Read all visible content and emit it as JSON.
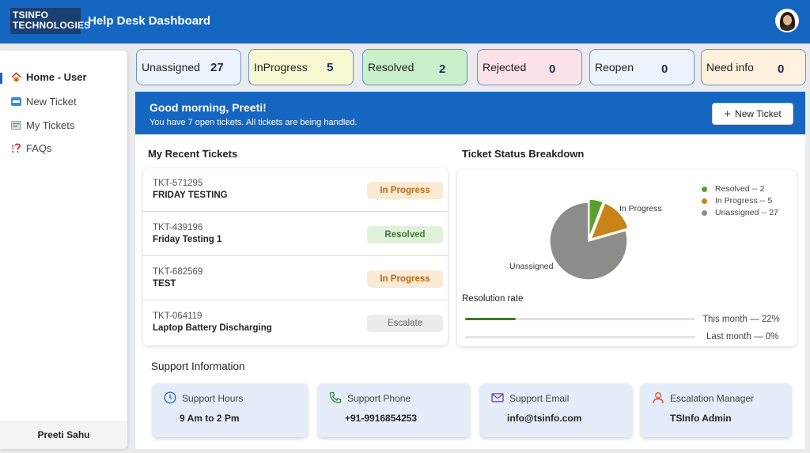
{
  "header": {
    "logo_line1": "TSINFO",
    "logo_line2": "TECHNOLOGIES",
    "title": "Help Desk Dashboard"
  },
  "sidebar": {
    "items": [
      {
        "label": "Home - User",
        "icon": "home-icon"
      },
      {
        "label": "New Ticket",
        "icon": "new-badge-icon"
      },
      {
        "label": "My Tickets",
        "icon": "ticket-icon"
      },
      {
        "label": "FAQs",
        "icon": "question-icon"
      }
    ],
    "user_name": "Preeti Sahu"
  },
  "stats": [
    {
      "label": "Unassigned",
      "value": "27",
      "bg": "#edf3fb"
    },
    {
      "label": "InProgress",
      "value": "5",
      "bg": "#f7f7d2"
    },
    {
      "label": "Resolved",
      "value": "2",
      "bg": "#c9f0c9"
    },
    {
      "label": "Rejected",
      "value": "0",
      "bg": "#fbe3e8"
    },
    {
      "label": "Reopen",
      "value": "0",
      "bg": "#edf3fb"
    },
    {
      "label": "Need info",
      "value": "0",
      "bg": "#fff1dd"
    }
  ],
  "banner": {
    "greeting": "Good morning, Preeti!",
    "subtitle": "You have 7 open tickets. All tickets are being handled.",
    "new_ticket_label": "New Ticket"
  },
  "recent": {
    "title": "My Recent Tickets",
    "tickets": [
      {
        "id": "TKT-571295",
        "title": "FRIDAY TESTING",
        "status": "In Progress"
      },
      {
        "id": "TKT-439196",
        "title": "Friday Testing 1",
        "status": "Resolved"
      },
      {
        "id": "TKT-682569",
        "title": "TEST",
        "status": "In Progress"
      },
      {
        "id": "TKT-064119",
        "title": "Laptop Battery Discharging",
        "status": "Escalate"
      }
    ]
  },
  "breakdown": {
    "title": "Ticket Status Breakdown",
    "legend": [
      {
        "label": "Resolved -- 2",
        "color": "#5aa02c"
      },
      {
        "label": "In Progress -- 5",
        "color": "#c98418"
      },
      {
        "label": "Unassigned -- 27",
        "color": "#8c8c88"
      }
    ],
    "pie": {
      "values": [
        2,
        5,
        27
      ],
      "colors": [
        "#5aa02c",
        "#c98418",
        "#8c8c88"
      ],
      "label_inprogress": "In Progress",
      "label_unassigned": "Unassigned"
    },
    "resolution_title": "Resolution rate",
    "this_month_label": "This month — 22%",
    "this_month_value": 0.22,
    "last_month_label": "Last month — 0%",
    "last_month_value": 0
  },
  "support": {
    "title": "Support Information",
    "cards": [
      {
        "label": "Support Hours",
        "value": "9 Am to 2 Pm",
        "icon": "clock-icon"
      },
      {
        "label": "Support Phone",
        "value": "+91-9916854253",
        "icon": "phone-icon"
      },
      {
        "label": "Support Email",
        "value": "info@tsinfo.com",
        "icon": "mail-icon"
      },
      {
        "label": "Escalation Manager",
        "value": "TSInfo Admin",
        "icon": "person-icon"
      }
    ]
  }
}
